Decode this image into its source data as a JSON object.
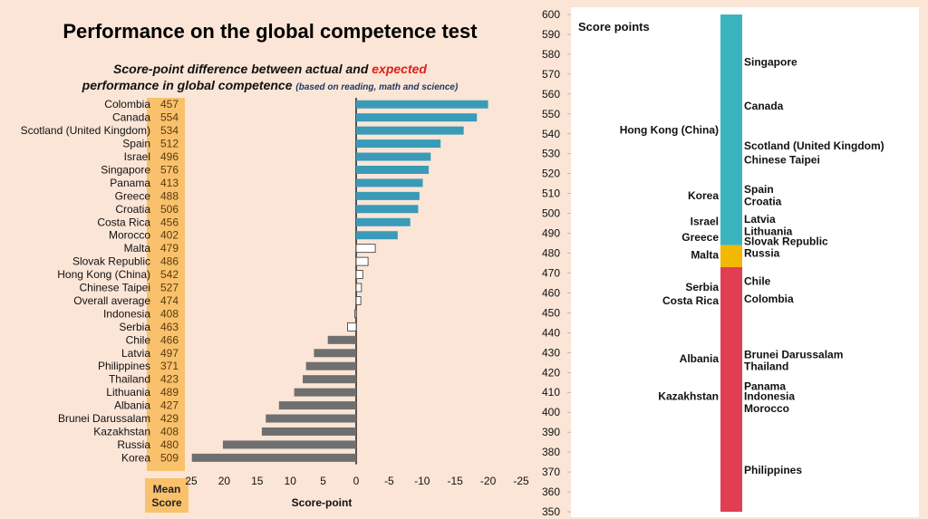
{
  "title": "Performance on the global competence test",
  "subtitle": {
    "line1_prefix": "Score-point difference between actual and ",
    "line1_highlight": "expected",
    "line2": "performance in global competence ",
    "line2_note": "(based on reading, math and science)"
  },
  "colors": {
    "positive": "#3a9bb8",
    "negative": "#6f6f6f",
    "neutral": "#ffffff",
    "mean_box": "#f9c16b",
    "band_top": "#3ab5c0",
    "band_mid": "#f3b800",
    "band_low": "#e03f53"
  },
  "mean_score_label": [
    "Mean",
    "Score"
  ],
  "chart_data": [
    {
      "type": "bar",
      "orientation": "horizontal",
      "xlabel": "Score-point",
      "xlim": [
        25,
        -25
      ],
      "xticks": [
        25,
        20,
        15,
        10,
        5,
        0,
        -5,
        -10,
        -15,
        -20,
        -25
      ],
      "tick_labels": [
        "25",
        "20",
        "15",
        "10",
        "5",
        "0",
        "-5",
        "-10",
        "-15",
        "-20",
        "-25"
      ],
      "categories": [
        "Colombia",
        "Canada",
        "Scotland (United Kingdom)",
        "Spain",
        "Israel",
        "Singapore",
        "Panama",
        "Greece",
        "Croatia",
        "Costa Rica",
        "Morocco",
        "Malta",
        "Slovak Republic",
        "Hong Kong (China)",
        "Chinese Taipei",
        "Overall average",
        "Indonesia",
        "Serbia",
        "Chile",
        "Latvia",
        "Philippines",
        "Thailand",
        "Lithuania",
        "Albania",
        "Brunei Darussalam",
        "Kazakhstan",
        "Russia",
        "Korea"
      ],
      "mean_scores": [
        "457",
        "554",
        "534",
        "512",
        "496",
        "576",
        "413",
        "488",
        "506",
        "456",
        "402",
        "479",
        "486",
        "542",
        "527",
        "474",
        "408",
        "463",
        "466",
        "497",
        "371",
        "423",
        "489",
        "427",
        "429",
        "408",
        "480",
        "509"
      ],
      "values": [
        -20.0,
        -18.3,
        -16.3,
        -12.8,
        -11.3,
        -11.0,
        -10.1,
        -9.6,
        -9.4,
        -8.2,
        -6.3,
        -2.9,
        -1.8,
        -1.0,
        -0.8,
        -0.7,
        0.2,
        1.3,
        4.3,
        6.4,
        7.6,
        8.1,
        9.4,
        11.7,
        13.7,
        14.3,
        20.2,
        24.9
      ],
      "significant": [
        true,
        true,
        true,
        true,
        true,
        true,
        true,
        true,
        true,
        true,
        true,
        false,
        false,
        false,
        false,
        false,
        false,
        false,
        true,
        true,
        true,
        true,
        true,
        true,
        true,
        true,
        true,
        true
      ]
    },
    {
      "type": "scale",
      "title": "Score points",
      "ylim": [
        350,
        600
      ],
      "yticks": [
        350,
        360,
        370,
        380,
        390,
        400,
        410,
        420,
        430,
        440,
        450,
        460,
        470,
        480,
        490,
        500,
        510,
        520,
        530,
        540,
        550,
        560,
        570,
        580,
        590,
        600
      ],
      "bands": [
        {
          "from": 484,
          "to": 600,
          "color": "#3ab5c0"
        },
        {
          "from": 473,
          "to": 484,
          "color": "#f3b800"
        },
        {
          "from": 350,
          "to": 473,
          "color": "#e03f53"
        }
      ],
      "labels_right": [
        {
          "text": "Singapore",
          "y": 576
        },
        {
          "text": "Canada",
          "y": 554
        },
        {
          "text": "Scotland (United Kingdom)",
          "y": 534
        },
        {
          "text": "Chinese Taipei",
          "y": 527
        },
        {
          "text": "Spain",
          "y": 512
        },
        {
          "text": "Croatia",
          "y": 506
        },
        {
          "text": "Latvia",
          "y": 497
        },
        {
          "text": "Lithuania",
          "y": 491
        },
        {
          "text": "Slovak Republic",
          "y": 486
        },
        {
          "text": "Russia",
          "y": 480
        },
        {
          "text": "Chile",
          "y": 466
        },
        {
          "text": "Colombia",
          "y": 457
        },
        {
          "text": "Brunei Darussalam",
          "y": 429
        },
        {
          "text": "Thailand",
          "y": 423
        },
        {
          "text": "Panama",
          "y": 413
        },
        {
          "text": "Indonesia",
          "y": 408
        },
        {
          "text": "Morocco",
          "y": 402
        },
        {
          "text": "Philippines",
          "y": 371
        }
      ],
      "labels_left": [
        {
          "text": "Hong Kong (China)",
          "y": 542
        },
        {
          "text": "Korea",
          "y": 509
        },
        {
          "text": "Israel",
          "y": 496
        },
        {
          "text": "Greece",
          "y": 488
        },
        {
          "text": "Malta",
          "y": 479
        },
        {
          "text": "Serbia",
          "y": 463
        },
        {
          "text": "Costa Rica",
          "y": 456
        },
        {
          "text": "Albania",
          "y": 427
        },
        {
          "text": "Kazakhstan",
          "y": 408
        }
      ]
    }
  ]
}
